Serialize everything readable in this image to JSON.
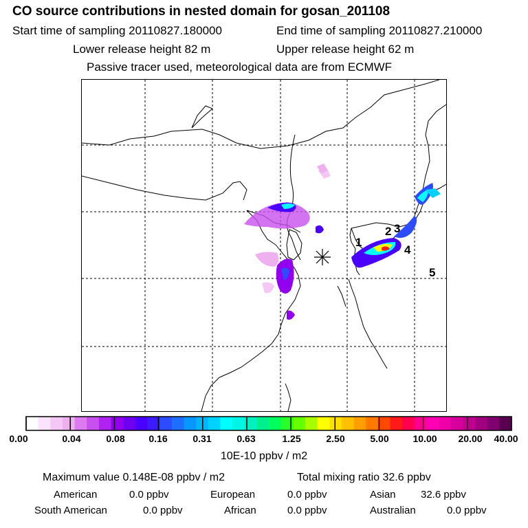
{
  "header": {
    "title": "CO  source contributions in nested domain for gosan_201108",
    "start_label": "Start time of sampling 20110827.180000",
    "end_label": "End time of sampling 20110827.210000",
    "lower_label": "Lower release height   82 m",
    "upper_label": "Upper release height   62 m",
    "tracer_label": "Passive tracer used, meteorological data are from ECMWF"
  },
  "map": {
    "point_labels": [
      "1",
      "2",
      "3",
      "4",
      "5"
    ]
  },
  "colorbar": {
    "tick_labels": [
      "0.00",
      "0.04",
      "0.08",
      "0.16",
      "0.31",
      "0.63",
      "1.25",
      "2.50",
      "5.00",
      "10.00",
      "20.00",
      "40.00"
    ],
    "unit": "10E-10 ppbv / m2",
    "colors": [
      "#ffffff",
      "#fbe3fb",
      "#f4c7f4",
      "#eeb0ee",
      "#dd7af0",
      "#c850ee",
      "#b022f0",
      "#9200f0",
      "#6e00f2",
      "#4a00ff",
      "#3c1cff",
      "#2e4cff",
      "#1e6eff",
      "#0a96ff",
      "#00b6ff",
      "#00d2ff",
      "#00ffff",
      "#00f6e4",
      "#00f0c0",
      "#00f090",
      "#00ff5a",
      "#28ff28",
      "#66ff00",
      "#a8ff00",
      "#ffff00",
      "#ffe000",
      "#ffc000",
      "#ffa000",
      "#ff7800",
      "#ff4800",
      "#ff1a1a",
      "#ff0050",
      "#ff0090",
      "#ff00b4",
      "#f000a8",
      "#d8009c",
      "#c00090",
      "#a00080",
      "#800070",
      "#5a0050"
    ]
  },
  "stats": {
    "max_label": "Maximum value  0.148E-08 ppbv / m2",
    "total_label": "Total mixing ratio       32.6 ppbv",
    "regions": [
      {
        "name": "American",
        "value": "0.0 ppbv"
      },
      {
        "name": "European",
        "value": "0.0 ppbv"
      },
      {
        "name": "Asian",
        "value": "32.6 ppbv"
      },
      {
        "name": "South American",
        "value": "0.0 ppbv"
      },
      {
        "name": "African",
        "value": "0.0 ppbv"
      },
      {
        "name": "Australian",
        "value": "0.0 ppbv"
      }
    ]
  },
  "chart_data": {
    "type": "heatmap",
    "title": "CO  source contributions in nested domain for gosan_201108",
    "color_scale_ticks": [
      0.0,
      0.04,
      0.08,
      0.16,
      0.31,
      0.63,
      1.25,
      2.5,
      5.0,
      10.0,
      20.0,
      40.0
    ],
    "unit": "10E-10 ppbv / m2",
    "maximum_value": "0.148E-08 ppbv / m2",
    "total_mixing_ratio_ppbv": 32.6,
    "regional_contributions_ppbv": {
      "American": 0.0,
      "European": 0.0,
      "Asian": 32.6,
      "South American": 0.0,
      "African": 0.0,
      "Australian": 0.0
    },
    "receptor": "gosan",
    "grid": true
  }
}
